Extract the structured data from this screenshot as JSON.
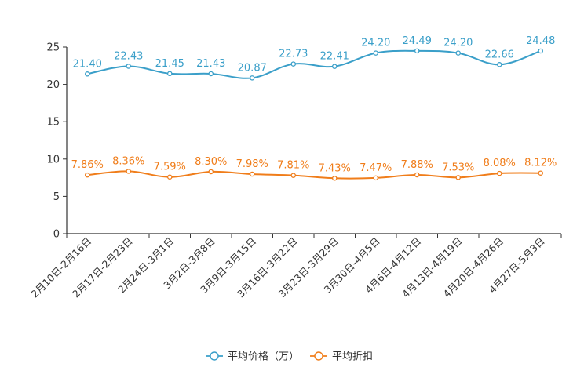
{
  "chart_data": {
    "type": "line",
    "title": "",
    "xlabel": "",
    "ylabel": "",
    "ylim": [
      0,
      25
    ],
    "yticks": [
      0,
      5,
      10,
      15,
      20,
      25
    ],
    "grid": false,
    "legend_position": "bottom-center",
    "categories": [
      "2月10日-2月16日",
      "2月17日-2月23日",
      "2月24日-3月1日",
      "3月2日-3月8日",
      "3月9日-3月15日",
      "3月16日-3月22日",
      "3月23日-3月29日",
      "3月30日-4月5日",
      "4月6日-4月12日",
      "4月13日-4月19日",
      "4月20日-4月26日",
      "4月27日-5月3日"
    ],
    "series": [
      {
        "name": "平均价格（万）",
        "color": "#3a9fc9",
        "values": [
          21.4,
          22.43,
          21.45,
          21.43,
          20.87,
          22.73,
          22.41,
          24.2,
          24.49,
          24.2,
          22.66,
          24.48
        ],
        "labels": [
          "21.40",
          "22.43",
          "21.45",
          "21.43",
          "20.87",
          "22.73",
          "22.41",
          "24.20",
          "24.49",
          "24.20",
          "22.66",
          "24.48"
        ]
      },
      {
        "name": "平均折扣",
        "color": "#f07d1a",
        "values": [
          7.86,
          8.36,
          7.59,
          8.3,
          7.98,
          7.81,
          7.43,
          7.47,
          7.88,
          7.53,
          8.08,
          8.12
        ],
        "labels": [
          "7.86%",
          "8.36%",
          "7.59%",
          "8.30%",
          "7.98%",
          "7.81%",
          "7.43%",
          "7.47%",
          "7.88%",
          "7.53%",
          "8.08%",
          "8.12%"
        ]
      }
    ]
  }
}
